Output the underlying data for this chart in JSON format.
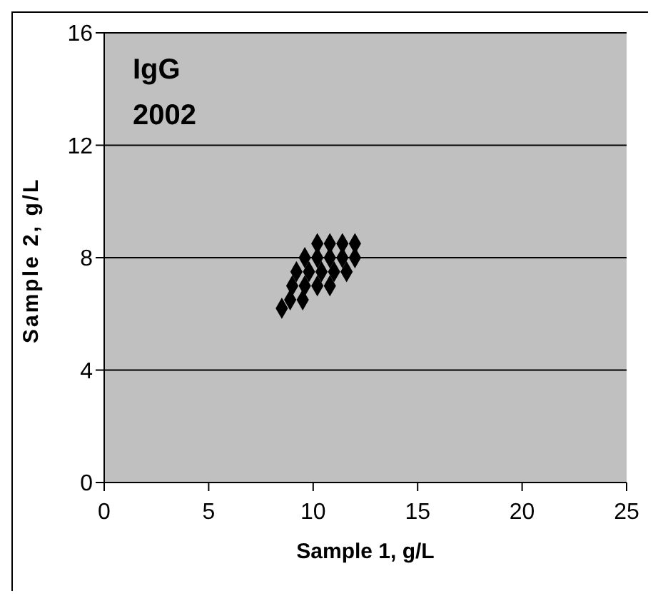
{
  "chart_data": {
    "type": "scatter",
    "xlabel": "Sample 1, g/L",
    "ylabel": "Sample 2, g/L",
    "annotations": [
      "IgG",
      "2002"
    ],
    "xlim": [
      0,
      25
    ],
    "xticks": [
      0,
      5,
      10,
      15,
      20,
      25
    ],
    "ylim": [
      0,
      16
    ],
    "yticks": [
      0,
      4,
      8,
      12,
      16
    ],
    "grid": "y",
    "legend": false,
    "marker": "diamond",
    "series": [
      {
        "color": "#000000",
        "x": [
          8.5,
          8.9,
          9.5,
          9.0,
          9.6,
          10.2,
          10.8,
          9.2,
          9.8,
          10.4,
          11.0,
          11.6,
          9.6,
          10.2,
          10.8,
          11.4,
          12.0,
          10.2,
          10.8,
          11.4,
          12.0
        ],
        "values": [
          6.2,
          6.5,
          6.5,
          7.0,
          7.0,
          7.0,
          7.0,
          7.5,
          7.5,
          7.5,
          7.5,
          7.5,
          8.0,
          8.0,
          8.0,
          8.0,
          8.0,
          8.5,
          8.5,
          8.5,
          8.5
        ]
      }
    ]
  }
}
